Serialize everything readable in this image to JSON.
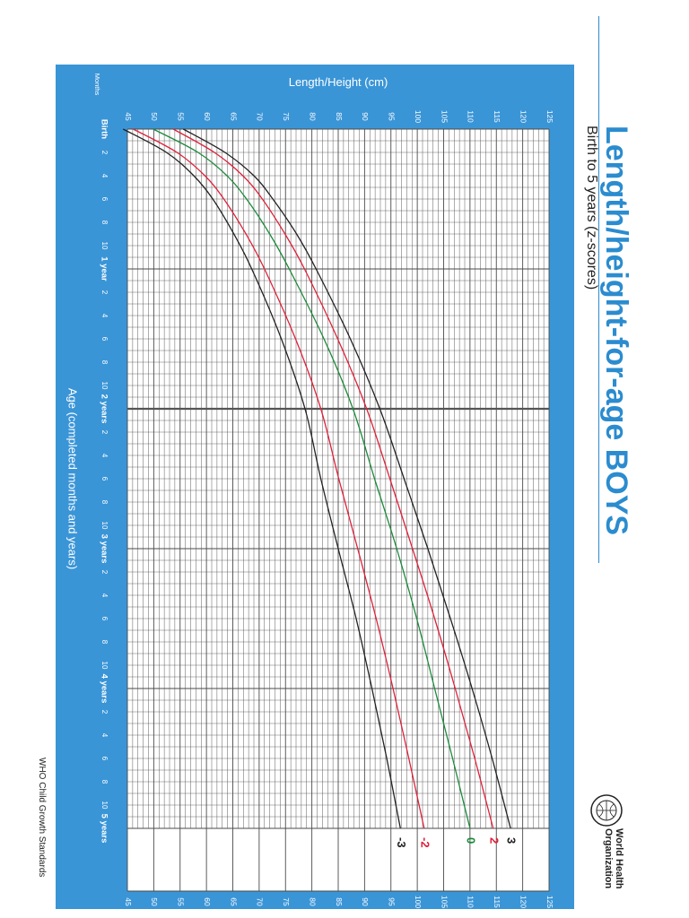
{
  "header": {
    "title": "Length/height-for-age BOYS",
    "subtitle": "Birth to 5 years (z-scores)"
  },
  "footer": {
    "who_name_line1": "World Health",
    "who_name_line2": "Organization",
    "standards": "WHO Child Growth Standards",
    "logo_icon": "who-emblem-icon"
  },
  "colors": {
    "frame": "#3a95d7",
    "grid": "#4a4a4a",
    "line_0": "#1a8a3a",
    "line_2": "#e0203a",
    "line_3": "#222222",
    "title": "#2b8ccf"
  },
  "chart_data": {
    "type": "line",
    "title": "Length/height-for-age BOYS",
    "subtitle": "Birth to 5 years (z-scores)",
    "ylabel": "Length/Height (cm)",
    "xlabel": "Age (completed months and years)",
    "months_label": "Months",
    "ylim": [
      45,
      125
    ],
    "xlim": [
      0,
      60
    ],
    "y_ticks": [
      45,
      50,
      55,
      60,
      65,
      70,
      75,
      80,
      85,
      90,
      95,
      100,
      105,
      110,
      115,
      120,
      125
    ],
    "x_ticks": [
      {
        "month": 0,
        "label": "Birth",
        "major": true
      },
      {
        "month": 2,
        "label": "2",
        "major": false
      },
      {
        "month": 4,
        "label": "4",
        "major": false
      },
      {
        "month": 6,
        "label": "6",
        "major": false
      },
      {
        "month": 8,
        "label": "8",
        "major": false
      },
      {
        "month": 10,
        "label": "10",
        "major": false
      },
      {
        "month": 12,
        "label": "1 year",
        "major": true
      },
      {
        "month": 14,
        "label": "2",
        "major": false
      },
      {
        "month": 16,
        "label": "4",
        "major": false
      },
      {
        "month": 18,
        "label": "6",
        "major": false
      },
      {
        "month": 20,
        "label": "8",
        "major": false
      },
      {
        "month": 22,
        "label": "10",
        "major": false
      },
      {
        "month": 24,
        "label": "2 years",
        "major": true
      },
      {
        "month": 26,
        "label": "2",
        "major": false
      },
      {
        "month": 28,
        "label": "4",
        "major": false
      },
      {
        "month": 30,
        "label": "6",
        "major": false
      },
      {
        "month": 32,
        "label": "8",
        "major": false
      },
      {
        "month": 34,
        "label": "10",
        "major": false
      },
      {
        "month": 36,
        "label": "3 years",
        "major": true
      },
      {
        "month": 38,
        "label": "2",
        "major": false
      },
      {
        "month": 40,
        "label": "4",
        "major": false
      },
      {
        "month": 42,
        "label": "6",
        "major": false
      },
      {
        "month": 44,
        "label": "8",
        "major": false
      },
      {
        "month": 46,
        "label": "10",
        "major": false
      },
      {
        "month": 48,
        "label": "4 years",
        "major": true
      },
      {
        "month": 50,
        "label": "2",
        "major": false
      },
      {
        "month": 52,
        "label": "4",
        "major": false
      },
      {
        "month": 54,
        "label": "6",
        "major": false
      },
      {
        "month": 56,
        "label": "8",
        "major": false
      },
      {
        "month": 58,
        "label": "10",
        "major": false
      },
      {
        "month": 60,
        "label": "5 years",
        "major": true
      }
    ],
    "vertical_divider_month": 24,
    "grid": true,
    "x": [
      0,
      2,
      4,
      6,
      9,
      12,
      18,
      24,
      30,
      36,
      42,
      48,
      54,
      60
    ],
    "series": [
      {
        "name": "3",
        "color": "#222222",
        "values": [
          55.6,
          63.5,
          69.0,
          72.6,
          77.1,
          80.8,
          87.3,
          92.9,
          97.5,
          102.0,
          106.3,
          110.4,
          114.2,
          117.7
        ]
      },
      {
        "name": "2",
        "color": "#e0203a",
        "values": [
          53.7,
          61.5,
          66.9,
          70.6,
          74.9,
          78.6,
          84.9,
          90.4,
          94.8,
          99.1,
          103.3,
          107.2,
          110.9,
          114.4
        ]
      },
      {
        "name": "0",
        "color": "#1a8a3a",
        "values": [
          49.9,
          58.4,
          63.9,
          67.6,
          72.0,
          75.7,
          82.3,
          87.8,
          91.9,
          96.1,
          99.9,
          103.3,
          106.7,
          110.0
        ]
      },
      {
        "name": "-2",
        "color": "#e0203a",
        "values": [
          46.1,
          54.4,
          59.7,
          63.3,
          67.5,
          71.0,
          76.9,
          81.7,
          85.1,
          88.7,
          92.2,
          95.4,
          98.4,
          101.3
        ]
      },
      {
        "name": "-3",
        "color": "#222222",
        "values": [
          44.2,
          52.4,
          57.6,
          61.2,
          65.2,
          68.6,
          74.2,
          78.7,
          81.7,
          85.0,
          88.4,
          91.4,
          94.2,
          96.8
        ]
      }
    ]
  }
}
